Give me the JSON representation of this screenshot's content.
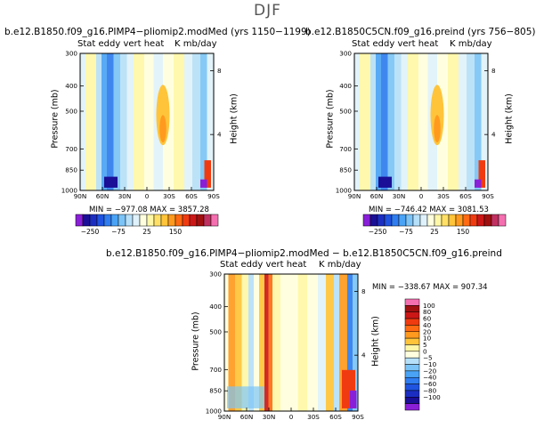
{
  "main_title": "DJF",
  "panels": [
    {
      "title": "b.e12.B1850.f09_g16.PIMP4−pliomip2.modMed (yrs 1150−1199)",
      "sub_left": "Stat eddy vert heat",
      "sub_right": "K mb/day",
      "stats": "MIN = −977.08  MAX = 3857.28"
    },
    {
      "title": "b.e12.B1850C5CN.f09_g16.preind (yrs 756−805)",
      "sub_left": "Stat eddy vert heat",
      "sub_right": "K mb/day",
      "stats": "MIN = −746.42  MAX = 3081.53"
    },
    {
      "title": "b.e12.B1850.f09_g16.PIMP4−pliomip2.modMed − b.e12.B1850C5CN.f09_g16.preind",
      "sub_left": "Stat eddy vert heat",
      "sub_right": "K mb/day",
      "stats": "MIN = −338.67  MAX = 907.34"
    }
  ],
  "axes": {
    "ylabel": "Pressure (mb)",
    "y2label": "Height (km)",
    "pressure_ticks": [
      "300",
      "400",
      "500",
      "700",
      "850",
      "1000"
    ],
    "height_ticks": [
      "8",
      "4"
    ],
    "lat_ticks": [
      "90N",
      "60N",
      "30N",
      "0",
      "30S",
      "60S",
      "90S"
    ]
  },
  "colorbar_top": {
    "labels": [
      "−250",
      "−75",
      "25",
      "150"
    ],
    "colors": [
      "#8a1fd8",
      "#1a0f96",
      "#1c2ec2",
      "#1f53e0",
      "#2f7df0",
      "#4aa3f5",
      "#7cc4f7",
      "#b6e0fa",
      "#dff2fb",
      "#ffffe0",
      "#fff7a8",
      "#ffe066",
      "#ffc43a",
      "#ff9a1f",
      "#ff6a12",
      "#f03b10",
      "#cc1717",
      "#a01010",
      "#c03060",
      "#f46fb0"
    ]
  },
  "colorbar_diff": {
    "labels": [
      "100",
      "80",
      "60",
      "40",
      "20",
      "10",
      "5",
      "0",
      "−5",
      "−10",
      "−20",
      "−40",
      "−60",
      "−80",
      "−100"
    ],
    "colors": [
      "#f46fb0",
      "#a01010",
      "#cc1717",
      "#f03b10",
      "#ff6a12",
      "#ff9a1f",
      "#ffc43a",
      "#fff7a8",
      "#ffffe0",
      "#b6e0fa",
      "#7cc4f7",
      "#4aa3f5",
      "#2f7df0",
      "#1f53e0",
      "#1c2ec2",
      "#1a0f96",
      "#8a1fd8"
    ]
  },
  "chart_data": [
    {
      "type": "heatmap",
      "title": "b.e12.B1850.f09_g16.PIMP4−pliomip2.modMed (yrs 1150−1199)",
      "xlabel": "",
      "ylabel": "Pressure (mb)",
      "y2label": "Height (km)",
      "x_ticks": [
        "90N",
        "60N",
        "30N",
        "0",
        "30S",
        "60S",
        "90S"
      ],
      "y_ticks": [
        300,
        400,
        500,
        700,
        850,
        1000
      ],
      "min": -977.08,
      "max": 3857.28
    },
    {
      "type": "heatmap",
      "title": "b.e12.B1850C5CN.f09_g16.preind (yrs 756−805)",
      "xlabel": "",
      "ylabel": "Pressure (mb)",
      "y2label": "Height (km)",
      "x_ticks": [
        "90N",
        "60N",
        "30N",
        "0",
        "30S",
        "60S",
        "90S"
      ],
      "y_ticks": [
        300,
        400,
        500,
        700,
        850,
        1000
      ],
      "min": -746.42,
      "max": 3081.53
    },
    {
      "type": "heatmap",
      "title": "b.e12.B1850.f09_g16.PIMP4−pliomip2.modMed − b.e12.B1850C5CN.f09_g16.preind",
      "xlabel": "",
      "ylabel": "Pressure (mb)",
      "y2label": "Height (km)",
      "x_ticks": [
        "90N",
        "60N",
        "30N",
        "0",
        "30S",
        "60S",
        "90S"
      ],
      "y_ticks": [
        300,
        400,
        500,
        700,
        850,
        1000
      ],
      "min": -338.67,
      "max": 907.34
    }
  ]
}
